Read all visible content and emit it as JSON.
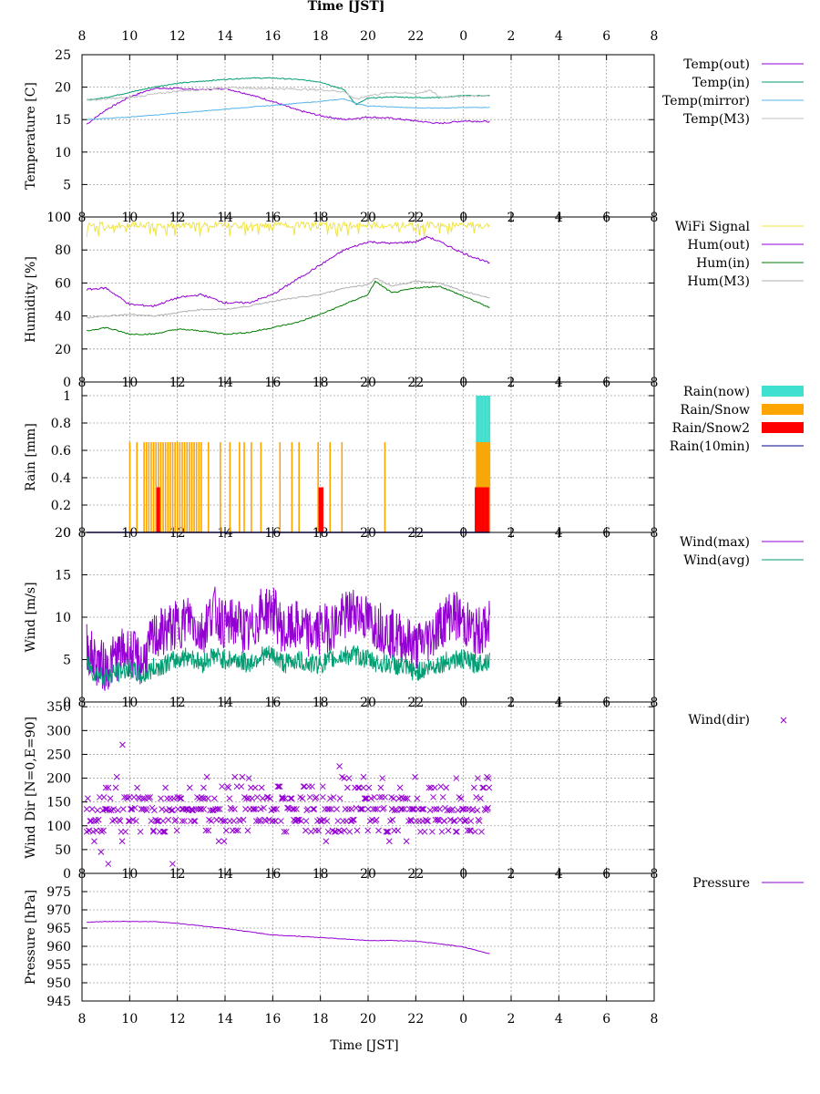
{
  "header": {
    "title": "Time [JST]"
  },
  "footer": {
    "xlabel": "Time [JST]"
  },
  "x_tick_labels": [
    "8",
    "10",
    "12",
    "14",
    "16",
    "18",
    "20",
    "22",
    "0",
    "2",
    "4",
    "6",
    "8"
  ],
  "chart_data": [
    {
      "id": "temperature",
      "type": "line",
      "ylabel": "Temperature [C]",
      "ylim": [
        0,
        25
      ],
      "yticks": [
        0,
        5,
        10,
        15,
        20,
        25
      ],
      "x_unit": "hours since 8:00 JST",
      "xlim": [
        0,
        24
      ],
      "grid": true,
      "legend_position": "right",
      "series": [
        {
          "name": "Temp(out)",
          "color": "#9400d3",
          "x": [
            0.2,
            1,
            2,
            3,
            4,
            5,
            6,
            7,
            8,
            9,
            10,
            11,
            12,
            13,
            14,
            15,
            16,
            17.1
          ],
          "values": [
            14.3,
            16.5,
            18.5,
            19.8,
            19.8,
            19.6,
            19.8,
            18.9,
            17.8,
            16.5,
            15.6,
            15.0,
            15.4,
            15.2,
            14.8,
            14.4,
            14.8,
            14.7
          ]
        },
        {
          "name": "Temp(in)",
          "color": "#009e73",
          "x": [
            0.2,
            1,
            2,
            3,
            4,
            5,
            6,
            7,
            8,
            9,
            10,
            11,
            11.5,
            12,
            13,
            14,
            15,
            16,
            17.1
          ],
          "values": [
            18.0,
            18.4,
            19.2,
            20.0,
            20.6,
            20.9,
            21.2,
            21.4,
            21.4,
            21.2,
            20.8,
            19.6,
            17.3,
            18.3,
            18.5,
            18.4,
            18.4,
            18.7,
            18.7
          ]
        },
        {
          "name": "Temp(mirror)",
          "color": "#56b4e9",
          "x": [
            0.2,
            2,
            4,
            6,
            8,
            10,
            11,
            11.5,
            12,
            14,
            15,
            17.1
          ],
          "values": [
            15.0,
            15.4,
            16.0,
            16.6,
            17.2,
            17.8,
            18.2,
            17.5,
            17.1,
            16.8,
            16.8,
            16.9
          ]
        },
        {
          "name": "Temp(M3)",
          "color": "#c0c0c0",
          "x": [
            0.2,
            2,
            4,
            6,
            8,
            10,
            11,
            11.5,
            12,
            13,
            14,
            14.6,
            15,
            16,
            17.1
          ],
          "values": [
            18.0,
            18.4,
            19.4,
            19.9,
            19.8,
            19.6,
            19.3,
            18.1,
            18.7,
            19.2,
            19.0,
            19.5,
            18.5,
            18.6,
            18.7
          ]
        }
      ]
    },
    {
      "id": "humidity",
      "type": "line",
      "ylabel": "Humidity [%]",
      "ylim": [
        0,
        100
      ],
      "yticks": [
        0,
        20,
        40,
        60,
        80,
        100
      ],
      "x_unit": "hours since 8:00 JST",
      "xlim": [
        0,
        24
      ],
      "grid": true,
      "legend_position": "right",
      "series": [
        {
          "name": "WiFi Signal",
          "color": "#f0e442",
          "x": [
            0.2,
            17.1
          ],
          "values": [
            97,
            97
          ]
        },
        {
          "name": "Hum(out)",
          "color": "#9400d3",
          "x": [
            0.2,
            1,
            2,
            3,
            4,
            5,
            6,
            7,
            8,
            9,
            10,
            11,
            12,
            13,
            14,
            14.5,
            15,
            16,
            17.1
          ],
          "values": [
            56,
            57,
            47,
            46,
            51,
            53,
            48,
            48,
            53,
            62,
            71,
            80,
            85,
            84,
            85,
            88,
            85,
            78,
            72
          ]
        },
        {
          "name": "Hum(in)",
          "color": "#007d00",
          "x": [
            0.2,
            1,
            2,
            3,
            4,
            5,
            6,
            7,
            8,
            9,
            10,
            11,
            12,
            12.3,
            13,
            14,
            15,
            16,
            17.1
          ],
          "values": [
            31,
            33,
            29,
            29,
            32,
            31,
            29,
            30,
            33,
            36,
            41,
            47,
            53,
            61,
            54,
            57,
            58,
            52,
            45
          ]
        },
        {
          "name": "Hum(M3)",
          "color": "#b0b0b0",
          "x": [
            0.2,
            1,
            2,
            3,
            4,
            5,
            6,
            7,
            8,
            9,
            10,
            11,
            12,
            12.3,
            13,
            14,
            15,
            16,
            17.1
          ],
          "values": [
            39,
            40,
            41,
            40,
            42,
            44,
            44,
            46,
            49,
            51,
            53,
            57,
            59,
            63,
            58,
            61,
            60,
            55,
            51
          ]
        }
      ]
    },
    {
      "id": "rain",
      "type": "bar",
      "ylabel": "Rain [mm]",
      "ylim": [
        0,
        1.1
      ],
      "yticks": [
        0,
        0.2,
        0.4,
        0.6,
        0.8,
        1
      ],
      "x_unit": "hours since 8:00 JST",
      "xlim": [
        0,
        24
      ],
      "grid": true,
      "legend_position": "right",
      "series": [
        {
          "name": "Rain(now)",
          "color": "#40e0d0",
          "x": [
            16.6,
            16.75,
            16.9,
            17.05
          ],
          "values": [
            1,
            1,
            1,
            1
          ]
        },
        {
          "name": "Rain/Snow",
          "color": "#ffa500",
          "x": [
            2.0,
            2.3,
            2.6,
            2.7,
            2.8,
            2.9,
            3.0,
            3.1,
            3.2,
            3.3,
            3.4,
            3.5,
            3.6,
            3.7,
            3.8,
            3.9,
            4.0,
            4.1,
            4.2,
            4.3,
            4.4,
            4.5,
            4.6,
            4.7,
            4.8,
            4.9,
            5.0,
            5.3,
            5.8,
            6.2,
            6.6,
            6.8,
            7.1,
            7.5,
            8.3,
            8.8,
            9.1,
            9.9,
            10.4,
            10.9,
            12.7,
            16.6,
            16.75,
            16.9,
            17.05
          ],
          "values": [
            0.66,
            0.66,
            0.66,
            0.66,
            0.66,
            0.66,
            0.66,
            0.66,
            0.66,
            0.66,
            0.66,
            0.66,
            0.66,
            0.66,
            0.66,
            0.66,
            0.66,
            0.66,
            0.66,
            0.66,
            0.66,
            0.66,
            0.66,
            0.66,
            0.66,
            0.66,
            0.66,
            0.66,
            0.66,
            0.66,
            0.66,
            0.66,
            0.66,
            0.66,
            0.66,
            0.66,
            0.66,
            0.66,
            0.66,
            0.66,
            0.66,
            0.66,
            0.66,
            0.66,
            0.66
          ]
        },
        {
          "name": "Rain/Snow2",
          "color": "#ff0000",
          "x": [
            3.2,
            10.0,
            10.05,
            16.55,
            16.7,
            16.85,
            17.0
          ],
          "values": [
            0.33,
            0.33,
            0.33,
            0.33,
            0.33,
            0.33,
            0.33
          ]
        },
        {
          "name": "Rain(10min)",
          "color": "#00008b",
          "x": [
            0.2,
            17.1
          ],
          "values": [
            0,
            0
          ]
        }
      ]
    },
    {
      "id": "wind",
      "type": "line",
      "ylabel": "Wind [m/s]",
      "ylim": [
        0,
        20
      ],
      "yticks": [
        0,
        5,
        10,
        15,
        20
      ],
      "x_unit": "hours since 8:00 JST",
      "xlim": [
        0,
        24
      ],
      "grid": true,
      "legend_position": "right",
      "series": [
        {
          "name": "Wind(max)",
          "color": "#9400d3",
          "x": [
            0.2,
            0.5,
            1,
            1.5,
            2,
            2.5,
            3,
            3.5,
            4,
            4.5,
            5,
            5.5,
            6,
            6.5,
            7,
            7.5,
            8,
            8.5,
            9,
            9.5,
            10,
            10.5,
            11,
            11.5,
            12,
            12.5,
            13,
            13.5,
            14,
            14.5,
            15,
            15.5,
            16,
            16.5,
            17.1
          ],
          "values": [
            6.5,
            5,
            4,
            5.5,
            6,
            4.5,
            7.5,
            8.5,
            9,
            10,
            8,
            11,
            9,
            9.5,
            8,
            10.5,
            11,
            8,
            9,
            8,
            8.5,
            9,
            10,
            11,
            9.5,
            9,
            8,
            7.5,
            6.5,
            7.5,
            9,
            10.5,
            9.5,
            8,
            9
          ]
        },
        {
          "name": "Wind(avg)",
          "color": "#009e73",
          "x": [
            0.2,
            0.5,
            1,
            1.5,
            2,
            2.5,
            3,
            3.5,
            4,
            4.5,
            5,
            5.5,
            6,
            6.5,
            7,
            7.5,
            8,
            8.5,
            9,
            9.5,
            10,
            10.5,
            11,
            11.5,
            12,
            12.5,
            13,
            13.5,
            14,
            14.5,
            15,
            15.5,
            16,
            16.5,
            17.1
          ],
          "values": [
            4.5,
            3.5,
            3,
            3.5,
            4,
            3,
            4,
            4.5,
            5,
            5.5,
            4.5,
            5.5,
            5,
            5,
            4.5,
            5.5,
            5.5,
            4.5,
            5,
            4.5,
            4.5,
            5,
            5.5,
            5.5,
            5,
            4.5,
            4.5,
            4,
            3.5,
            4,
            4.5,
            5,
            5,
            4.5,
            5
          ]
        }
      ]
    },
    {
      "id": "winddir",
      "type": "scatter",
      "ylabel": "Wind Dir [N=0,E=90]",
      "ylim": [
        0,
        360
      ],
      "yticks": [
        0,
        50,
        100,
        150,
        200,
        250,
        300,
        350
      ],
      "x_unit": "hours since 8:00 JST",
      "xlim": [
        0,
        24
      ],
      "grid": true,
      "legend_position": "right",
      "series": [
        {
          "name": "Wind(dir)",
          "color": "#9400d3",
          "x": [
            0.2,
            0.3,
            0.5,
            0.6,
            0.8,
            1.0,
            1.1,
            1.7,
            2.0,
            2.5,
            3.0,
            3.5,
            3.8,
            4.2,
            4.6,
            5.1,
            5.3,
            5.7,
            6.0,
            6.4,
            7.0,
            7.5,
            8.0,
            8.4,
            8.9,
            9.4,
            9.8,
            10.3,
            10.8,
            11.0,
            11.3,
            11.8,
            12.3,
            12.6,
            13.0,
            13.4,
            13.8,
            14.3,
            14.8,
            15.2,
            15.7,
            16.0,
            16.3,
            16.6,
            17.0,
            0.9,
            1.6,
            2.1,
            3.4,
            4.0,
            5.0,
            6.2,
            7.3,
            8.1,
            9.0,
            10.1,
            11.2,
            12.0,
            13.1,
            14.1,
            15.0,
            16.1,
            17.05
          ],
          "values": [
            135,
            90,
            110,
            90,
            45,
            180,
            20,
            270,
            110,
            135,
            90,
            180,
            20,
            110,
            135,
            180,
            90,
            135,
            110,
            135,
            200,
            135,
            110,
            160,
            135,
            110,
            90,
            135,
            225,
            200,
            135,
            180,
            110,
            200,
            135,
            160,
            110,
            135,
            180,
            110,
            200,
            135,
            90,
            200,
            135,
            90,
            110,
            135,
            110,
            160,
            135,
            110,
            135,
            110,
            135,
            160,
            200,
            135,
            90,
            135,
            110,
            135,
            200
          ]
        }
      ]
    },
    {
      "id": "pressure",
      "type": "line",
      "ylabel": "Pressure [hPa]",
      "ylim": [
        945,
        980
      ],
      "yticks": [
        945,
        950,
        955,
        960,
        965,
        970,
        975
      ],
      "x_unit": "hours since 8:00 JST",
      "xlim": [
        0,
        24
      ],
      "grid": true,
      "legend_position": "right",
      "series": [
        {
          "name": "Pressure",
          "color": "#9400d3",
          "x": [
            0.2,
            1,
            2,
            3,
            4,
            5,
            6,
            7,
            8,
            9,
            10,
            11,
            12,
            13,
            14,
            15,
            16,
            17.1
          ],
          "values": [
            966.6,
            966.8,
            966.8,
            966.8,
            966.3,
            965.6,
            964.9,
            964.0,
            963.1,
            962.8,
            962.4,
            962.0,
            961.6,
            961.6,
            961.4,
            960.7,
            959.8,
            958.0
          ]
        }
      ]
    }
  ]
}
